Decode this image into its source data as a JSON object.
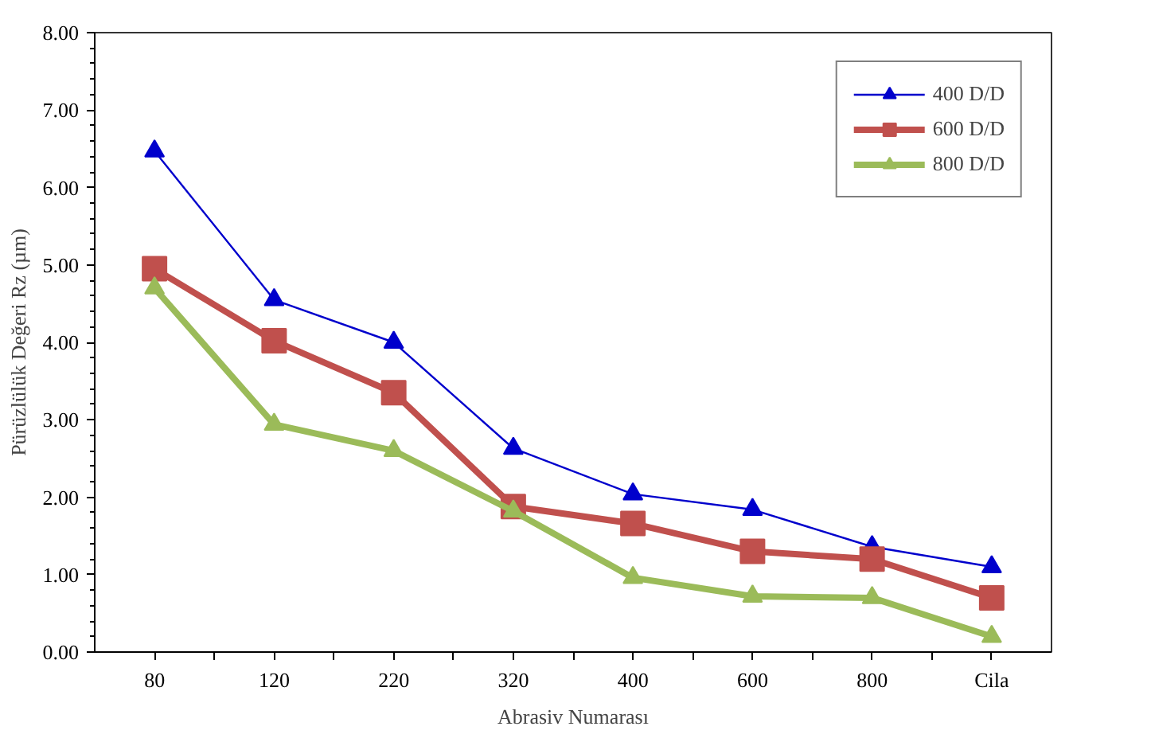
{
  "chart_data": {
    "type": "line",
    "xlabel": "Abrasiv Numarası",
    "ylabel": "Pürüzlülük Değeri Rz (µm)",
    "categories": [
      "80",
      "120",
      "220",
      "320",
      "400",
      "600",
      "800",
      "Cila"
    ],
    "series": [
      {
        "name": "400 D/D",
        "color": "#0000cc",
        "marker": "triangle",
        "values": [
          6.47,
          4.55,
          4.0,
          2.63,
          2.04,
          1.84,
          1.36,
          1.1
        ]
      },
      {
        "name": "600 D/D",
        "color": "#c0504d",
        "marker": "square",
        "values": [
          4.95,
          4.02,
          3.35,
          1.88,
          1.66,
          1.3,
          1.2,
          0.7
        ]
      },
      {
        "name": "800 D/D",
        "color": "#9bbb59",
        "marker": "triangle",
        "values": [
          4.7,
          2.94,
          2.6,
          1.82,
          0.96,
          0.72,
          0.7,
          0.2
        ]
      }
    ],
    "ylim": [
      0,
      8
    ],
    "yticks": [
      {
        "value": 0,
        "label": "0.00"
      },
      {
        "value": 1,
        "label": "1.00"
      },
      {
        "value": 2,
        "label": "2.00"
      },
      {
        "value": 3,
        "label": "3.00"
      },
      {
        "value": 4,
        "label": "4.00"
      },
      {
        "value": 5,
        "label": "5.00"
      },
      {
        "value": 6,
        "label": "6.00"
      },
      {
        "value": 7,
        "label": "7.00"
      },
      {
        "value": 8,
        "label": "8.00"
      }
    ],
    "grid": false,
    "legend": "top right"
  }
}
